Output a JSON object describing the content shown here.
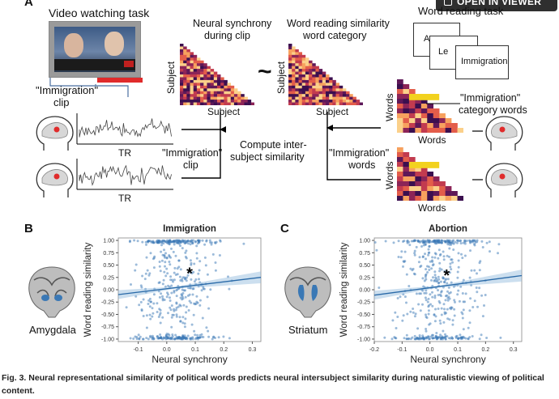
{
  "button": {
    "label": "OPEN IN VIEWER"
  },
  "panelA": {
    "letter": "A",
    "video_task": "Video watching task",
    "clip_label_1": "\"Immigration\"",
    "clip_label_2": "clip",
    "neural_sync_1": "Neural synchrony",
    "neural_sync_2": "during clip",
    "word_sim_1": "Word reading similarity",
    "word_sim_2": "word category",
    "tilde": "~",
    "subject_x_1": "Subject",
    "subject_y_1": "Subject",
    "subject_x_2": "Subject",
    "subject_y_2": "Subject",
    "word_task": "Word reading task",
    "cards": [
      "As",
      "Le",
      "Immigration"
    ],
    "category_words_1": "\"Immigration\"",
    "category_words_2": "category words",
    "words_y_1": "Words",
    "words_x_1": "Words",
    "words_y_2": "Words",
    "words_x_2": "Words",
    "tr_1": "TR",
    "tr_2": "TR",
    "clip_mid_1": "\"Immigration\"",
    "clip_mid_2": "clip",
    "compute_1": "Compute inter-",
    "compute_2": "subject similarity",
    "words_mid_1": "\"Immigration\"",
    "words_mid_2": "words"
  },
  "panelB": {
    "letter": "B",
    "brain_label": "Amygdala"
  },
  "panelC": {
    "letter": "C",
    "brain_label": "Striatum"
  },
  "chart_data": [
    {
      "type": "scatter",
      "title": "Immigration",
      "xlabel": "Neural synchrony",
      "ylabel": "Word reading similarity",
      "xlim": [
        -0.17,
        0.33
      ],
      "ylim": [
        -1.05,
        1.05
      ],
      "xticks": [
        "-0.1",
        "0.0",
        "0.1",
        "0.2",
        "0.3"
      ],
      "xtick_values": [
        -0.1,
        0.0,
        0.1,
        0.2,
        0.3
      ],
      "yticks": [
        "1.00",
        "0.75",
        "0.50",
        "0.25",
        "0.00",
        "-0.25",
        "-0.50",
        "-0.75",
        "-1.00"
      ],
      "ytick_values": [
        1.0,
        0.75,
        0.5,
        0.25,
        0.0,
        -0.25,
        -0.5,
        -0.75,
        -1.0
      ],
      "x_center": 0.03,
      "x_spread": 0.07,
      "fit": {
        "intercept": 0.02,
        "slope": 0.7
      },
      "annotation": "*",
      "annotation_at": [
        0.08,
        0.22
      ],
      "point_color": "#3a78b5",
      "grid": false
    },
    {
      "type": "scatter",
      "title": "Abortion",
      "xlabel": "Neural synchrony",
      "ylabel": "Word reading similarity",
      "xlim": [
        -0.2,
        0.33
      ],
      "ylim": [
        -1.05,
        1.05
      ],
      "xticks": [
        "-0.2",
        "-0.1",
        "0.0",
        "0.1",
        "0.2",
        "0.3"
      ],
      "xtick_values": [
        -0.2,
        -0.1,
        0.0,
        0.1,
        0.2,
        0.3
      ],
      "yticks": [
        "1.00",
        "0.75",
        "0.50",
        "0.25",
        "0.00",
        "-0.25",
        "-0.50",
        "-0.75",
        "-1.00"
      ],
      "ytick_values": [
        1.0,
        0.75,
        0.5,
        0.25,
        0.0,
        -0.25,
        -0.5,
        -0.75,
        -1.0
      ],
      "x_center": 0.03,
      "x_spread": 0.08,
      "fit": {
        "intercept": 0.04,
        "slope": 0.75
      },
      "annotation": "*",
      "annotation_at": [
        0.06,
        0.18
      ],
      "point_color": "#3a78b5",
      "grid": false
    }
  ],
  "caption": {
    "fig": "Fig. 3.",
    "text": "Neural representational similarity of political words predicts neural intersubject similarity during naturalistic viewing of political content."
  },
  "colors": {
    "heat_dark": "#3b0f4f",
    "heat_mid": "#c23b4f",
    "heat_light": "#f7a15e",
    "highlight": "#f2d21e",
    "scatter": "#3a78b5"
  }
}
